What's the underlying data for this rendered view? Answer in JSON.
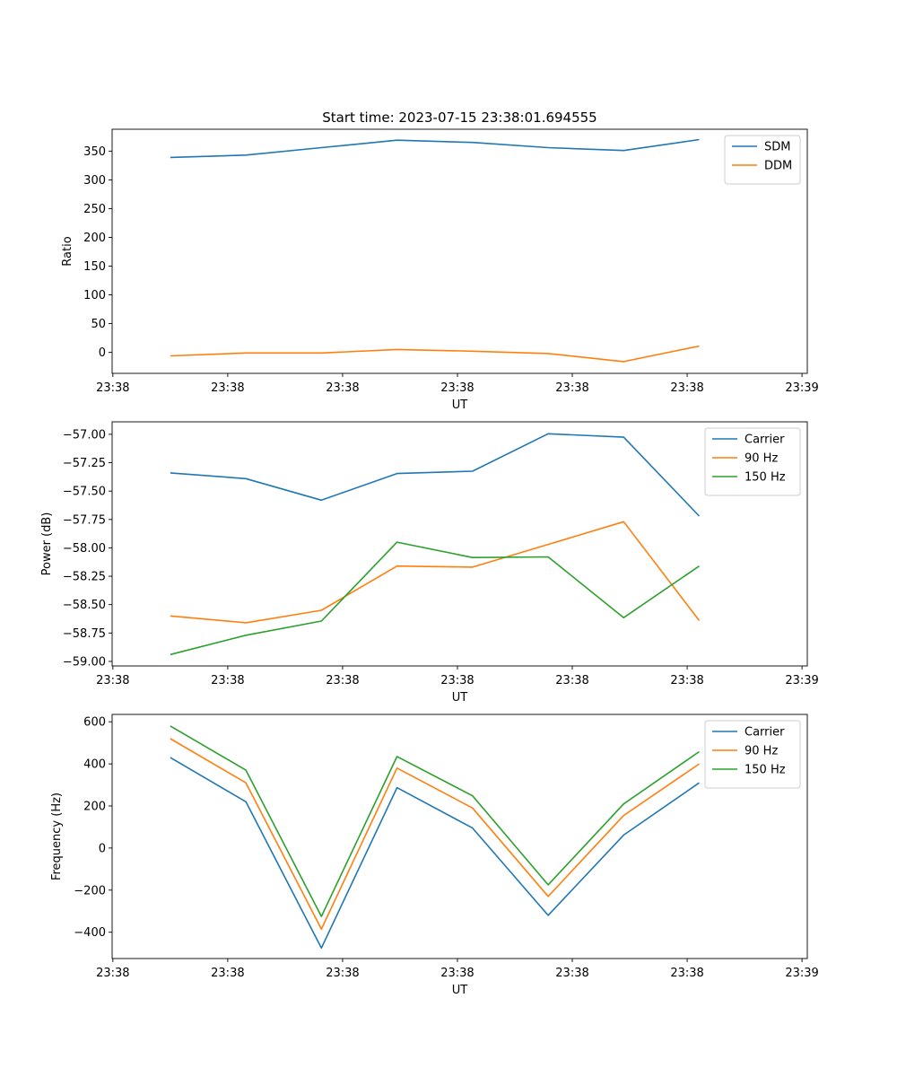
{
  "chart_data": [
    {
      "type": "line",
      "title": "Start time: 2023-07-15 23:38:01.694555",
      "xlabel": "UT",
      "ylabel": "Ratio",
      "x_index": [
        0,
        1,
        2,
        3,
        4,
        5,
        6,
        7
      ],
      "xlim": [
        -0.77,
        8.43
      ],
      "xticks": [
        -0.76,
        0.76,
        2.28,
        3.8,
        5.32,
        6.84,
        8.36
      ],
      "xtick_labels": [
        "23:38",
        "23:38",
        "23:38",
        "23:38",
        "23:38",
        "23:38",
        "23:39"
      ],
      "ylim": [
        -36.5,
        388
      ],
      "yticks": [
        0,
        50,
        100,
        150,
        200,
        250,
        300,
        350
      ],
      "ytick_labels": [
        "0",
        "50",
        "100",
        "150",
        "200",
        "250",
        "300",
        "350"
      ],
      "legend_position": "top-right",
      "series": [
        {
          "name": "SDM",
          "color": "#1f77b4",
          "values": [
            339,
            343,
            356,
            369,
            365,
            356,
            351,
            370
          ]
        },
        {
          "name": "DDM",
          "color": "#ff7f0e",
          "values": [
            -6,
            -1,
            -1,
            5,
            2,
            -2,
            -16,
            11
          ]
        }
      ]
    },
    {
      "type": "line",
      "title": "",
      "xlabel": "UT",
      "ylabel": "Power (dB)",
      "x_index": [
        0,
        1,
        2,
        3,
        4,
        5,
        6,
        7
      ],
      "xlim": [
        -0.77,
        8.43
      ],
      "xticks": [
        -0.76,
        0.76,
        2.28,
        3.8,
        5.32,
        6.84,
        8.36
      ],
      "xtick_labels": [
        "23:38",
        "23:38",
        "23:38",
        "23:38",
        "23:38",
        "23:38",
        "23:39"
      ],
      "ylim": [
        -59.04,
        -56.89
      ],
      "yticks": [
        -59.0,
        -58.75,
        -58.5,
        -58.25,
        -58.0,
        -57.75,
        -57.5,
        -57.25,
        -57.0
      ],
      "ytick_labels": [
        "−59.00",
        "−58.75",
        "−58.50",
        "−58.25",
        "−58.00",
        "−57.75",
        "−57.50",
        "−57.25",
        "−57.00"
      ],
      "legend_position": "top-right",
      "series": [
        {
          "name": "Carrier",
          "color": "#1f77b4",
          "values": [
            -57.34,
            -57.39,
            -57.58,
            -57.345,
            -57.325,
            -56.995,
            -57.025,
            -57.72
          ]
        },
        {
          "name": "90 Hz",
          "color": "#ff7f0e",
          "values": [
            -58.6,
            -58.66,
            -58.55,
            -58.16,
            -58.17,
            -57.97,
            -57.77,
            -58.64
          ]
        },
        {
          "name": "150 Hz",
          "color": "#2ca02c",
          "values": [
            -58.94,
            -58.77,
            -58.645,
            -57.95,
            -58.085,
            -58.08,
            -58.615,
            -58.16
          ]
        }
      ]
    },
    {
      "type": "line",
      "title": "",
      "xlabel": "UT",
      "ylabel": "Frequency (Hz)",
      "x_index": [
        0,
        1,
        2,
        3,
        4,
        5,
        6,
        7
      ],
      "xlim": [
        -0.77,
        8.43
      ],
      "xticks": [
        -0.76,
        0.76,
        2.28,
        3.8,
        5.32,
        6.84,
        8.36
      ],
      "xtick_labels": [
        "23:38",
        "23:38",
        "23:38",
        "23:38",
        "23:38",
        "23:38",
        "23:39"
      ],
      "ylim": [
        -525,
        635
      ],
      "yticks": [
        -400,
        -200,
        0,
        200,
        400,
        600
      ],
      "ytick_labels": [
        "−400",
        "−200",
        "0",
        "200",
        "400",
        "600"
      ],
      "legend_position": "top-right",
      "series": [
        {
          "name": "Carrier",
          "color": "#1f77b4",
          "values": [
            430,
            220,
            -475,
            287,
            95,
            -320,
            62,
            310
          ]
        },
        {
          "name": "90 Hz",
          "color": "#ff7f0e",
          "values": [
            520,
            310,
            -385,
            380,
            190,
            -230,
            155,
            400
          ]
        },
        {
          "name": "150 Hz",
          "color": "#2ca02c",
          "values": [
            580,
            370,
            -325,
            435,
            248,
            -175,
            210,
            458
          ]
        }
      ]
    }
  ]
}
